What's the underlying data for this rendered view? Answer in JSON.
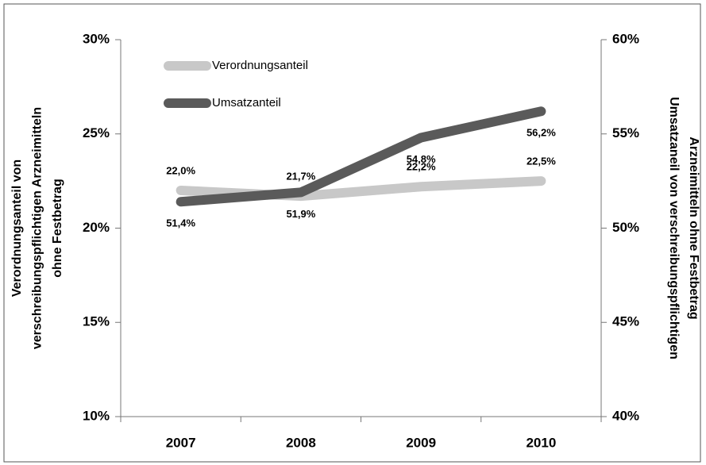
{
  "chart_data": {
    "type": "line",
    "categories": [
      "2007",
      "2008",
      "2009",
      "2010"
    ],
    "series": [
      {
        "name": "Verordnungsanteil",
        "color": "#c8c8c8",
        "axis": "y",
        "values": [
          22.0,
          21.7,
          22.2,
          22.5
        ],
        "value_labels": [
          "22,0%",
          "21,7%",
          "22,2%",
          "22,5%"
        ]
      },
      {
        "name": "Umsatzanteil",
        "color": "#5a5a5a",
        "axis": "y2",
        "values": [
          51.4,
          51.9,
          54.8,
          56.2
        ],
        "value_labels": [
          "51,4%",
          "51,9%",
          "54,8%",
          "56,2%"
        ]
      }
    ],
    "ylim": [
      10,
      30
    ],
    "yticks": [
      {
        "value": 10,
        "label": "10%"
      },
      {
        "value": 15,
        "label": "15%"
      },
      {
        "value": 20,
        "label": "20%"
      },
      {
        "value": 25,
        "label": "25%"
      },
      {
        "value": 30,
        "label": "30%"
      }
    ],
    "y2lim": [
      40,
      60
    ],
    "y2ticks": [
      {
        "value": 40,
        "label": "40%"
      },
      {
        "value": 45,
        "label": "45%"
      },
      {
        "value": 50,
        "label": "50%"
      },
      {
        "value": 55,
        "label": "55%"
      },
      {
        "value": 60,
        "label": "60%"
      }
    ],
    "ylabel": [
      "Verordnungsanteil von",
      "verschreibungspflichtigen Arzneimitteln",
      "ohne Festbetrag"
    ],
    "y2label": [
      "Umsatzaneil von verschreibungspflichtigen",
      "Arzneimitteln ohne Festbetrag"
    ],
    "legend": "upper left"
  }
}
